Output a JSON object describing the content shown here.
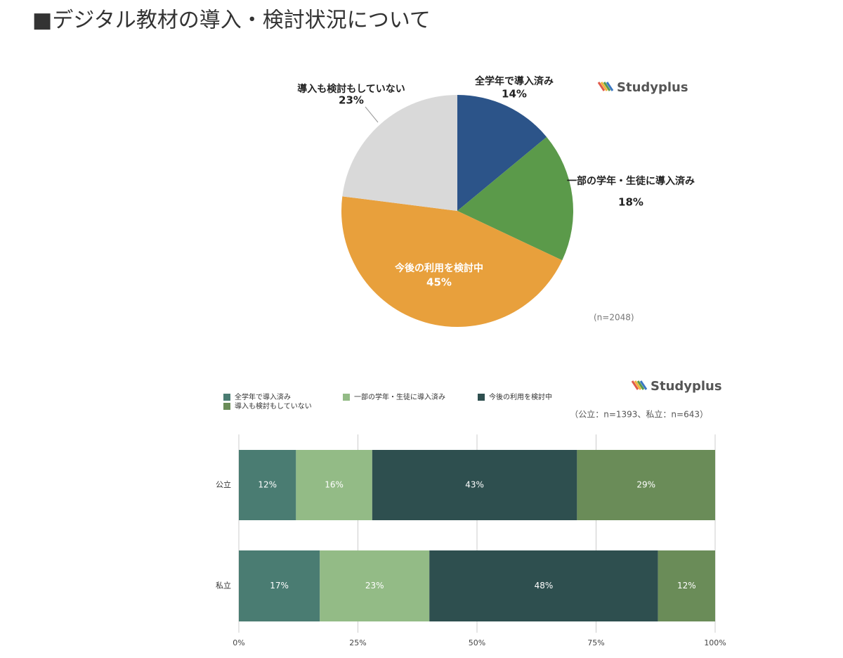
{
  "heading": "■デジタル教材の導入・検討状況について",
  "chart_data": [
    {
      "type": "pie",
      "brand": "Studyplus",
      "note": "(n=2048)",
      "categories": [
        "全学年で導入済み",
        "一部の学年・生徒に導入済み",
        "今後の利用を検討中",
        "導入も検討もしていない"
      ],
      "values": [
        14,
        18,
        45,
        23
      ],
      "value_labels": [
        "14%",
        "18%",
        "45%",
        "23%"
      ],
      "colors": [
        "#2c5489",
        "#5b9a4a",
        "#e8a03c",
        "#d9d9d9"
      ]
    },
    {
      "type": "stacked-bar-horizontal",
      "brand": "Studyplus",
      "note": "（公立：n=1393、私立：n=643）",
      "categories": [
        "公立",
        "私立"
      ],
      "series": [
        {
          "name": "全学年で導入済み",
          "color": "#4a7c72",
          "values": [
            12,
            17
          ],
          "value_labels": [
            "12%",
            "17%"
          ]
        },
        {
          "name": "一部の学年・生徒に導入済み",
          "color": "#93bb86",
          "values": [
            16,
            23
          ],
          "value_labels": [
            "16%",
            "23%"
          ]
        },
        {
          "name": "今後の利用を検討中",
          "color": "#2e4f4f",
          "values": [
            43,
            48
          ],
          "value_labels": [
            "43%",
            "48%"
          ]
        },
        {
          "name": "導入も検討もしていない",
          "color": "#6a8c58",
          "values": [
            29,
            12
          ],
          "value_labels": [
            "29%",
            "12%"
          ]
        }
      ],
      "xlim": [
        0,
        100
      ],
      "xticks": [
        {
          "value": 0,
          "label": "0%"
        },
        {
          "value": 25,
          "label": "25%"
        },
        {
          "value": 50,
          "label": "50%"
        },
        {
          "value": 75,
          "label": "75%"
        },
        {
          "value": 100,
          "label": "100%"
        }
      ],
      "grid": true
    }
  ]
}
